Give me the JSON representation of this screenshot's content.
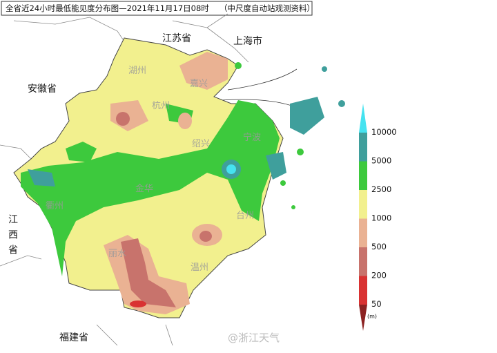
{
  "header": {
    "title": "全省近24小时最低能见度分布图—2021年11月17日08时",
    "source": "（中尺度自动站观测资料）"
  },
  "provinces": [
    "江苏省",
    "上海市",
    "安徽省",
    "江西省",
    "福建省"
  ],
  "cities": [
    "湖州",
    "嘉兴",
    "杭州",
    "绍兴",
    "宁波",
    "金华",
    "衢州",
    "台州",
    "丽水",
    "温州"
  ],
  "legend": {
    "levels": [
      {
        "label": 10000,
        "color": "#3f9f9c"
      },
      {
        "label": 5000,
        "color": "#3dc93d"
      },
      {
        "label": 2500,
        "color": "#f2f08e"
      },
      {
        "label": 1000,
        "color": "#eab293"
      },
      {
        "label": 500,
        "color": "#c8736c"
      },
      {
        "label": 200,
        "color": "#d93232"
      },
      {
        "label": 50,
        "color": "#8c2222"
      }
    ],
    "top_color": "#45e3f0",
    "unit": "(m)"
  },
  "watermark": "@浙江天气"
}
